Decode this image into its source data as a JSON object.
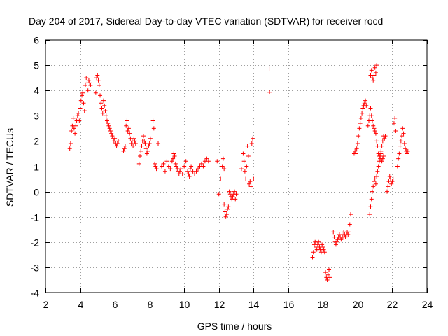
{
  "chart_data": {
    "type": "scatter",
    "title": "Day 204 of 2017, Sidereal Day-to-day VTEC variation (SDTVAR) for receiver rocd",
    "xlabel": "GPS time / hours",
    "ylabel": "SDTVAR / TECUs",
    "xlim": [
      2,
      24
    ],
    "ylim": [
      -4,
      6
    ],
    "xticks": [
      2,
      4,
      6,
      8,
      10,
      12,
      14,
      16,
      18,
      20,
      22,
      24
    ],
    "yticks": [
      -4,
      -3,
      -2,
      -1,
      0,
      1,
      2,
      3,
      4,
      5,
      6
    ],
    "grid": true,
    "marker": "+",
    "series": [
      {
        "name": "SDTVAR",
        "color": "#ff0000",
        "x": [
          3.4,
          3.45,
          3.5,
          3.55,
          3.6,
          3.65,
          3.7,
          3.75,
          3.8,
          3.85,
          3.9,
          3.95,
          4.0,
          4.05,
          4.1,
          4.15,
          4.2,
          4.25,
          4.3,
          4.35,
          4.4,
          4.45,
          4.5,
          4.55,
          4.6,
          4.9,
          4.95,
          5.0,
          5.05,
          5.1,
          5.15,
          5.2,
          5.25,
          5.3,
          5.35,
          5.4,
          5.45,
          5.5,
          5.55,
          5.6,
          5.65,
          5.7,
          5.75,
          5.8,
          5.85,
          5.9,
          5.95,
          6.0,
          6.05,
          6.1,
          6.15,
          6.2,
          6.5,
          6.55,
          6.6,
          6.65,
          6.7,
          6.75,
          6.8,
          6.85,
          6.9,
          6.95,
          7.0,
          7.05,
          7.1,
          7.15,
          7.2,
          7.4,
          7.45,
          7.5,
          7.55,
          7.6,
          7.65,
          7.7,
          7.75,
          7.8,
          7.85,
          7.9,
          7.95,
          8.0,
          8.05,
          8.2,
          8.25,
          8.3,
          8.35,
          8.4,
          8.5,
          8.6,
          8.7,
          8.8,
          8.9,
          9.0,
          9.1,
          9.2,
          9.3,
          9.35,
          9.4,
          9.45,
          9.5,
          9.55,
          9.6,
          9.65,
          9.7,
          9.75,
          9.8,
          9.9,
          10.0,
          10.1,
          10.2,
          10.25,
          10.3,
          10.35,
          10.4,
          10.5,
          10.6,
          10.7,
          10.8,
          10.9,
          11.0,
          11.1,
          11.2,
          11.3,
          11.4,
          11.9,
          12.0,
          12.1,
          12.2,
          12.25,
          12.3,
          12.3,
          12.35,
          12.4,
          12.45,
          12.5,
          12.55,
          12.6,
          12.65,
          12.7,
          12.75,
          12.8,
          12.85,
          12.9,
          12.95,
          13.0,
          13.3,
          13.4,
          13.45,
          13.5,
          13.55,
          13.6,
          13.65,
          13.7,
          13.75,
          13.8,
          13.85,
          13.9,
          13.95,
          14.0,
          14.9,
          14.92,
          17.4,
          17.45,
          17.5,
          17.55,
          17.6,
          17.65,
          17.7,
          17.75,
          17.8,
          17.85,
          17.9,
          17.95,
          18.0,
          18.05,
          18.1,
          18.15,
          18.2,
          18.25,
          18.3,
          18.35,
          18.4,
          18.6,
          18.65,
          18.7,
          18.75,
          18.8,
          18.85,
          18.9,
          18.95,
          19.0,
          19.05,
          19.1,
          19.15,
          19.2,
          19.25,
          19.3,
          19.35,
          19.4,
          19.45,
          19.5,
          19.55,
          19.6,
          19.8,
          19.85,
          19.9,
          19.95,
          20.0,
          20.05,
          20.1,
          20.15,
          20.2,
          20.25,
          20.3,
          20.35,
          20.4,
          20.45,
          20.5,
          20.6,
          20.65,
          20.7,
          20.75,
          20.8,
          20.85,
          20.9,
          20.95,
          21.0,
          21.05,
          21.1,
          21.15,
          21.2,
          21.25,
          21.3,
          21.35,
          21.4,
          21.45,
          21.5,
          20.75,
          20.8,
          20.85,
          20.9,
          20.95,
          21.0,
          21.05,
          21.1,
          20.7,
          20.75,
          20.8,
          20.85,
          20.9,
          20.95,
          21.0,
          21.05,
          21.1,
          21.15,
          21.2,
          21.25,
          21.3,
          21.35,
          21.4,
          21.45,
          21.5,
          21.55,
          21.6,
          21.7,
          21.75,
          21.8,
          21.85,
          21.9,
          21.95,
          22.0,
          22.05,
          22.1,
          22.15,
          22.2,
          22.3,
          22.35,
          22.4,
          22.45,
          22.5,
          22.55,
          22.6,
          22.65,
          22.7,
          22.75,
          22.8,
          22.85,
          22.9
        ],
        "y": [
          1.7,
          1.9,
          2.4,
          2.6,
          2.9,
          2.5,
          2.3,
          2.6,
          2.8,
          3.0,
          3.1,
          2.8,
          3.3,
          3.6,
          3.8,
          3.9,
          3.5,
          3.2,
          4.2,
          4.5,
          4.3,
          4.0,
          4.4,
          4.3,
          4.2,
          3.9,
          4.5,
          4.6,
          4.4,
          4.2,
          3.8,
          3.5,
          3.3,
          3.1,
          3.6,
          3.4,
          3.2,
          3.0,
          2.8,
          2.7,
          2.6,
          2.5,
          2.4,
          2.3,
          2.2,
          2.1,
          2.0,
          2.1,
          1.9,
          1.8,
          1.9,
          2.0,
          1.6,
          1.7,
          1.8,
          2.6,
          2.8,
          2.4,
          2.5,
          2.3,
          2.1,
          1.9,
          2.0,
          1.8,
          2.1,
          2.0,
          1.9,
          1.1,
          1.4,
          1.6,
          1.8,
          2.0,
          2.2,
          2.0,
          1.9,
          1.7,
          1.5,
          1.6,
          1.8,
          1.9,
          2.1,
          2.8,
          2.5,
          1.1,
          1.0,
          0.9,
          1.9,
          0.5,
          1.0,
          1.1,
          0.8,
          1.2,
          1.0,
          0.9,
          1.2,
          1.3,
          1.5,
          1.4,
          1.1,
          1.0,
          0.9,
          0.8,
          0.7,
          0.8,
          0.9,
          0.7,
          1.0,
          1.2,
          0.8,
          0.7,
          0.6,
          0.9,
          1.0,
          0.8,
          0.7,
          0.8,
          0.9,
          1.0,
          1.1,
          1.0,
          1.2,
          1.3,
          1.2,
          1.2,
          -0.1,
          0.5,
          1.0,
          1.3,
          0.9,
          -0.5,
          -0.8,
          -1.0,
          -0.9,
          -0.7,
          -0.6,
          0.0,
          -0.1,
          -0.2,
          -0.3,
          -0.2,
          -0.1,
          0.0,
          -0.3,
          -0.1,
          0.9,
          1.5,
          1.2,
          0.8,
          0.5,
          1.0,
          1.8,
          1.4,
          0.3,
          0.4,
          0.2,
          1.9,
          2.1,
          0.5,
          4.85,
          3.93,
          -2.6,
          -2.4,
          -2.1,
          -2.0,
          -2.2,
          -2.3,
          -2.1,
          -2.0,
          -2.2,
          -2.3,
          -2.4,
          -2.1,
          -2.2,
          -2.3,
          -2.4,
          -3.2,
          -3.4,
          -3.5,
          -3.3,
          -3.1,
          -3.4,
          -1.6,
          -1.8,
          -2.0,
          -2.1,
          -2.0,
          -1.9,
          -1.8,
          -1.7,
          -1.8,
          -1.9,
          -1.7,
          -1.8,
          -1.6,
          -1.7,
          -1.8,
          -1.7,
          -1.6,
          -1.7,
          -1.6,
          -1.3,
          -0.9,
          1.5,
          1.6,
          1.5,
          1.7,
          1.9,
          2.2,
          2.5,
          2.7,
          2.9,
          3.1,
          3.3,
          3.4,
          3.5,
          3.6,
          3.4,
          2.6,
          2.8,
          3.0,
          3.3,
          3.0,
          2.8,
          2.6,
          2.5,
          2.4,
          2.3,
          2.0,
          1.8,
          1.5,
          1.4,
          1.3,
          1.5,
          1.2,
          1.3,
          1.4,
          4.6,
          4.8,
          4.5,
          4.4,
          4.6,
          4.9,
          4.7,
          5.0,
          -0.9,
          -0.6,
          -0.3,
          0.0,
          0.2,
          0.4,
          0.5,
          0.3,
          0.6,
          0.8,
          1.0,
          1.2,
          1.4,
          1.6,
          1.8,
          2.0,
          2.2,
          2.1,
          2.2,
          0.0,
          0.2,
          0.4,
          0.6,
          0.5,
          0.3,
          0.4,
          0.5,
          2.7,
          2.9,
          2.4,
          1.0,
          1.3,
          1.5,
          1.8,
          2.0,
          2.2,
          2.5,
          2.3,
          1.9,
          1.7,
          1.6,
          1.5,
          1.6
        ]
      }
    ]
  }
}
